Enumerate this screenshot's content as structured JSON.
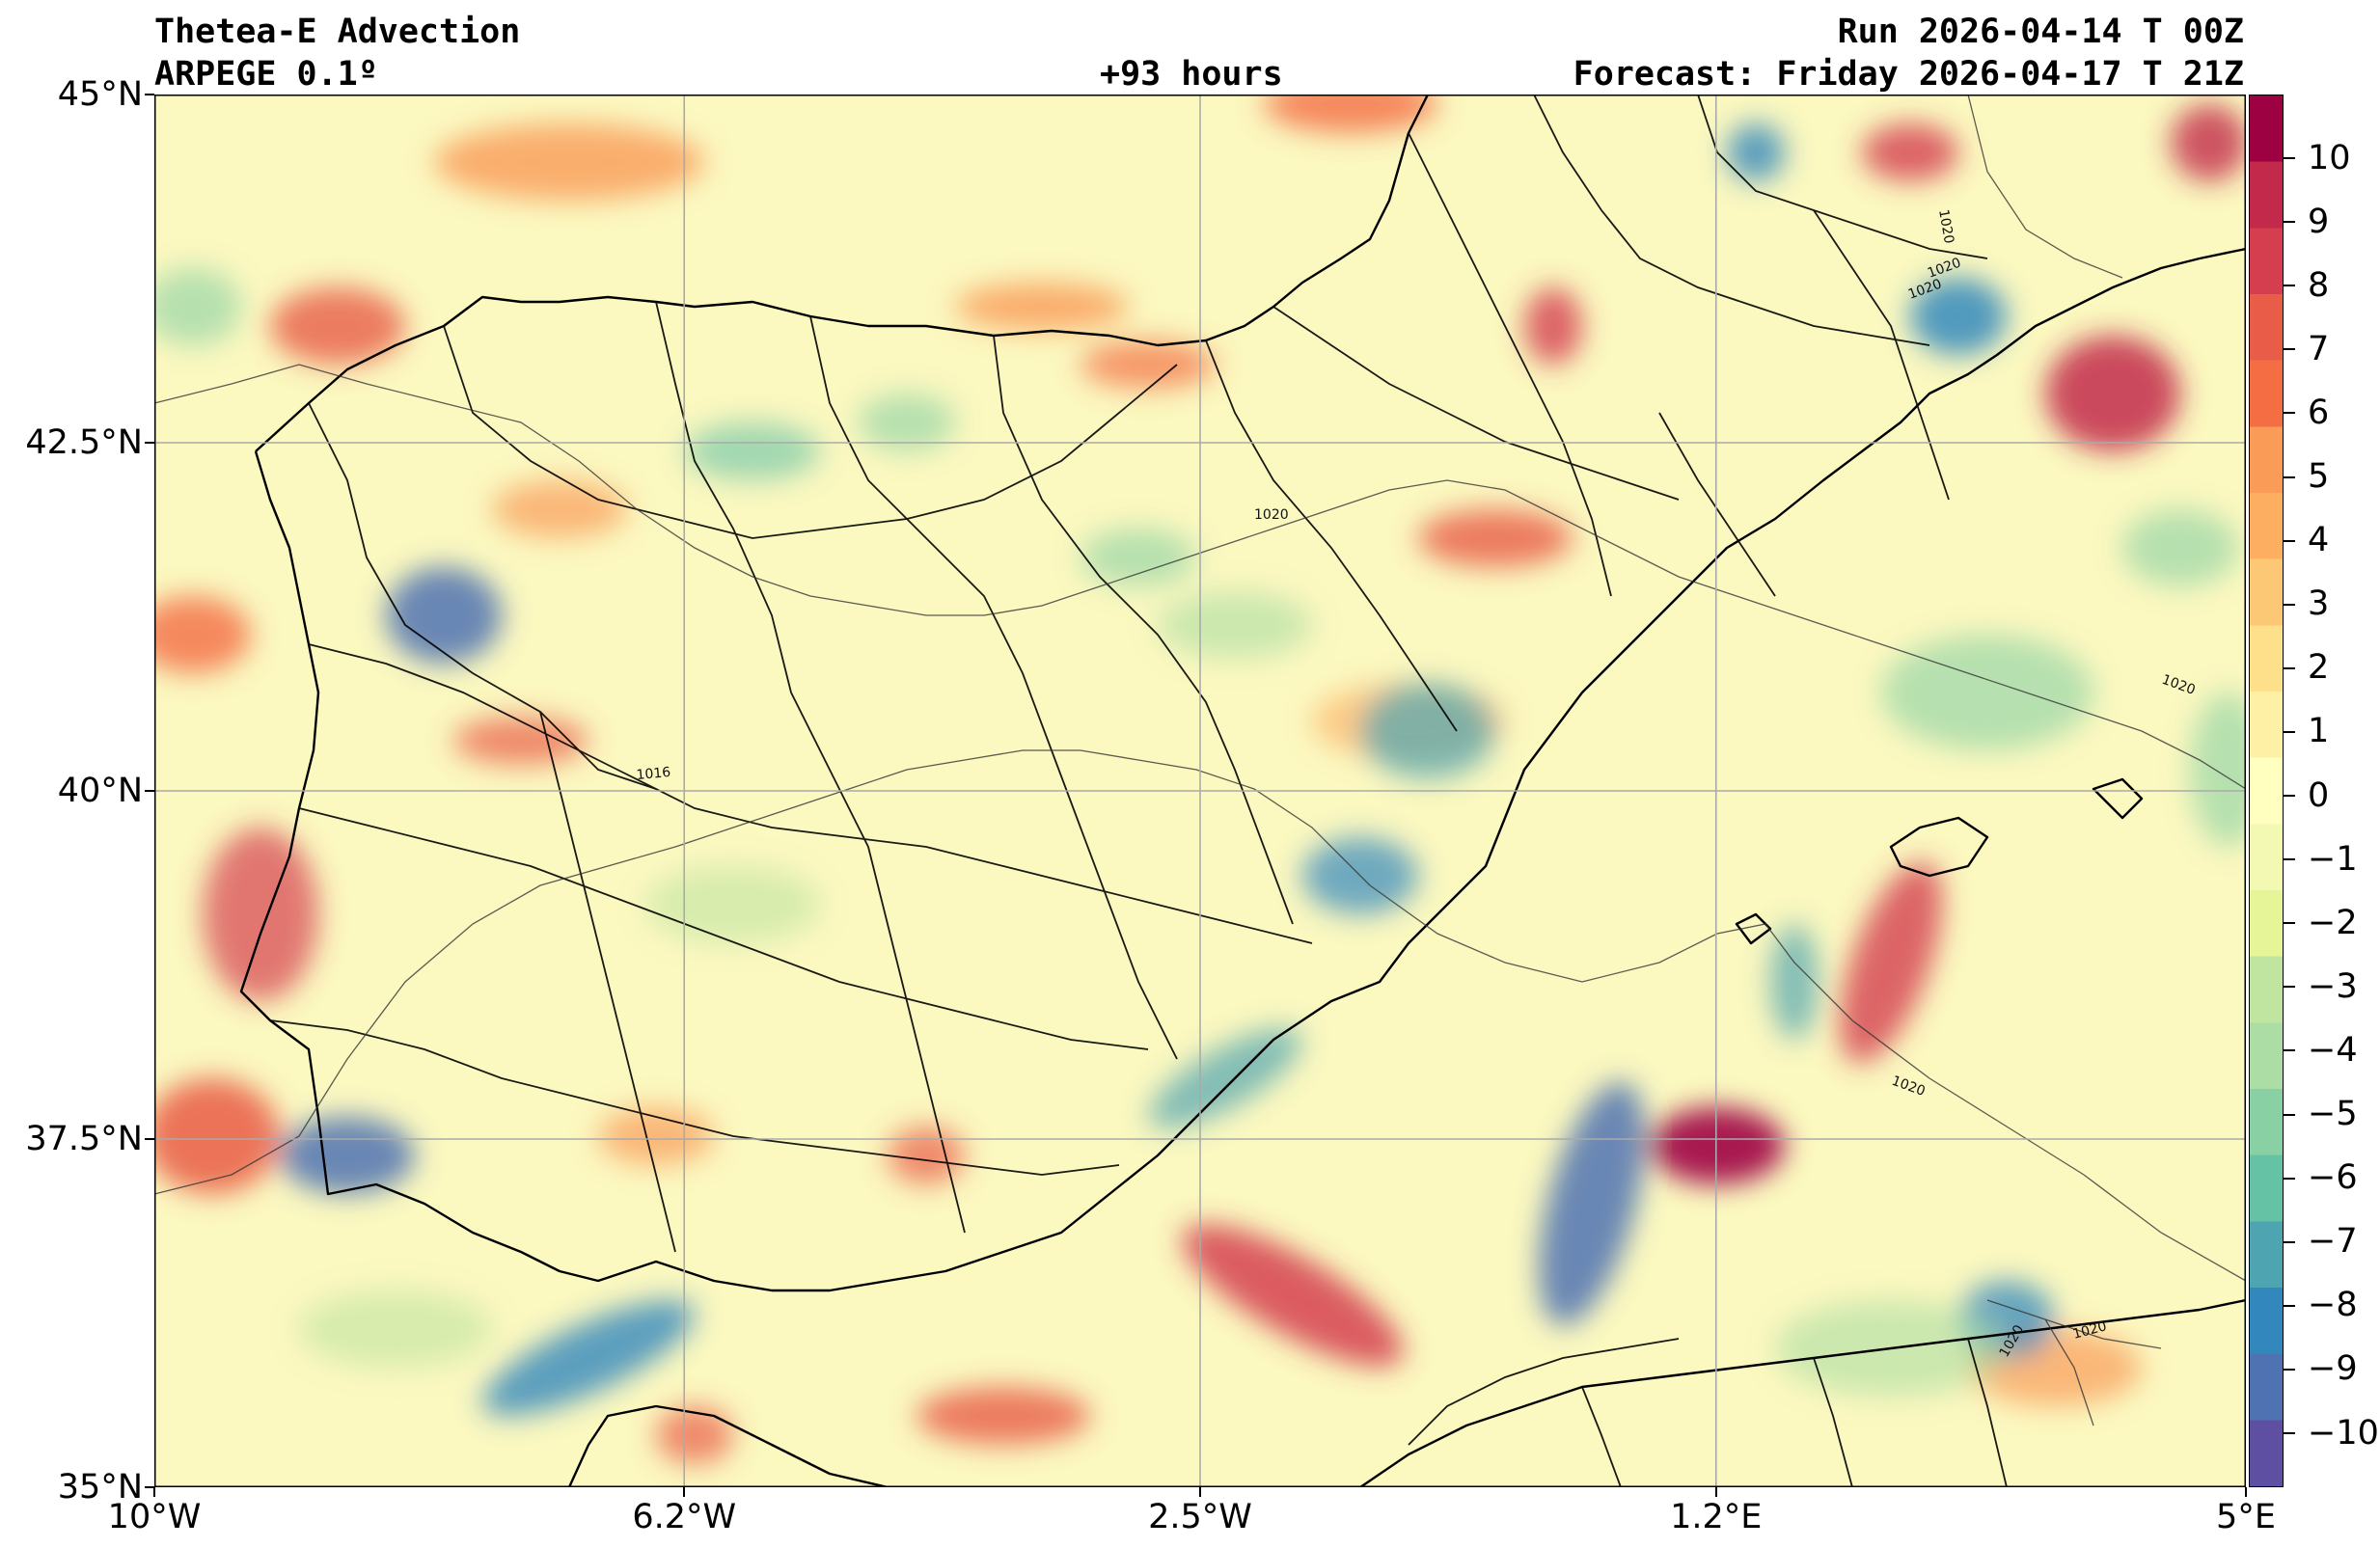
{
  "header": {
    "title": "Thetea-E Advection",
    "model": "ARPEGE 0.1º",
    "lead_time": "+93 hours",
    "run": "Run 2026-04-14 T 00Z",
    "forecast": "Forecast: Friday 2026-04-17 T 21Z"
  },
  "map": {
    "lon_ticks": [
      {
        "value": -10,
        "label": "10°W"
      },
      {
        "value": -6.2,
        "label": "6.2°W"
      },
      {
        "value": -2.5,
        "label": "2.5°W"
      },
      {
        "value": 1.2,
        "label": "1.2°E"
      },
      {
        "value": 5,
        "label": "5°E"
      }
    ],
    "lat_ticks": [
      {
        "value": 45,
        "label": "45°N"
      },
      {
        "value": 42.5,
        "label": "42.5°N"
      },
      {
        "value": 40,
        "label": "40°N"
      },
      {
        "value": 37.5,
        "label": "37.5°N"
      },
      {
        "value": 35,
        "label": "35°N"
      }
    ],
    "extent": {
      "lon": [
        -10,
        5
      ],
      "lat": [
        35,
        45
      ]
    },
    "grid": true,
    "isobar_labels": [
      "1020",
      "1020",
      "1020",
      "1020",
      "1016",
      "1020",
      "1020",
      "1020",
      "1020"
    ]
  },
  "colorbar": {
    "ticks": [
      "10",
      "9",
      "8",
      "7",
      "6",
      "5",
      "4",
      "3",
      "2",
      "1",
      "0",
      "−1",
      "−2",
      "−3",
      "−4",
      "−5",
      "−6",
      "−7",
      "−8",
      "−9",
      "−10"
    ],
    "colors": [
      "#9e0142",
      "#c2294a",
      "#d53e4f",
      "#e95c47",
      "#f46d43",
      "#fa9b58",
      "#fdae61",
      "#fdc876",
      "#fee08b",
      "#fef0a5",
      "#ffffbf",
      "#f3f9b2",
      "#e6f598",
      "#c0e5a0",
      "#abdda4",
      "#89d0a4",
      "#66c2a5",
      "#4ea4b0",
      "#3288bd",
      "#4f73b2",
      "#5e4fa2"
    ]
  }
}
